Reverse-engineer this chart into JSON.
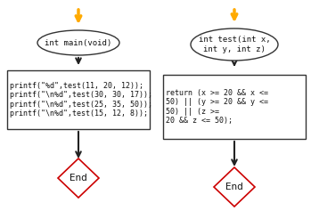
{
  "bg_color": "#ffffff",
  "arrow_color": "#ffaa00",
  "dark_arrow_color": "#222222",
  "ellipse_fill": "#ffffff",
  "ellipse_edge": "#333333",
  "rect_fill": "#ffffff",
  "rect_edge": "#333333",
  "diamond_fill": "#ffffff",
  "diamond_edge": "#cc0000",
  "font_color": "#111111",
  "font_size": 6.5,
  "title_font_size": 6.5,
  "left_ellipse_text": "int main(void)",
  "left_rect_text": "printf(\"%d\",test(11, 20, 12));\nprintf(\"\\n%d\",test(30, 30, 17));\nprintf(\"\\n%d\",test(25, 35, 50));\nprintf(\"\\n%d\",test(15, 12, 8));",
  "left_diamond_text": "End",
  "right_ellipse_text": "int test(int x,\nint y, int z)",
  "right_rect_text": "return (x >= 20 && x <=\n50) || (y >= 20 && y <=\n50) || (z >=\n20 && z <= 50);",
  "right_diamond_text": "End"
}
